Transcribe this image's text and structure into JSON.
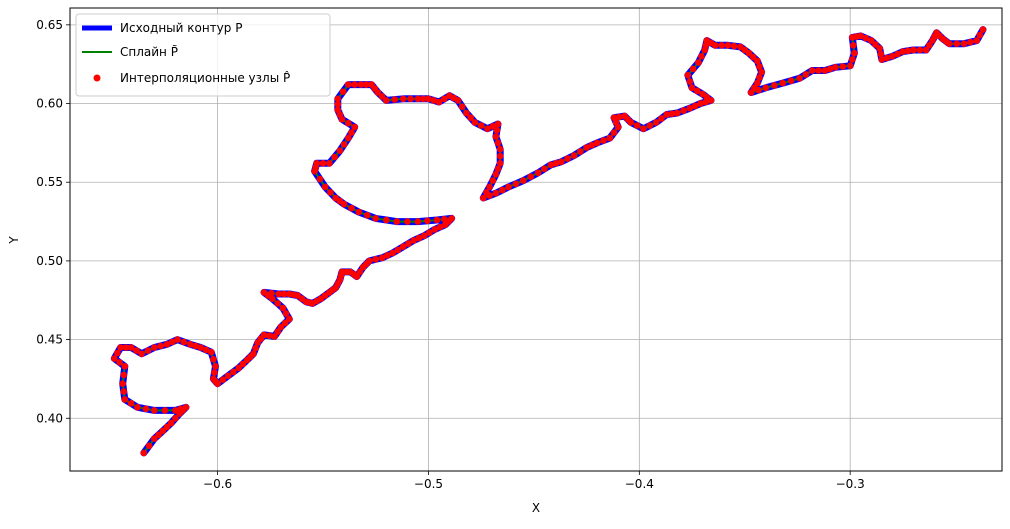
{
  "chart_data": {
    "type": "line",
    "xlabel": "X",
    "ylabel": "Y",
    "xlim": [
      -0.67,
      -0.228
    ],
    "ylim": [
      0.3665,
      0.6607
    ],
    "grid": true,
    "legend_position": "top-left",
    "xticks": [
      -0.6,
      -0.5,
      -0.4,
      -0.3
    ],
    "xtick_labels": [
      "−0.6",
      "−0.5",
      "−0.4",
      "−0.3"
    ],
    "yticks": [
      0.4,
      0.45,
      0.5,
      0.55,
      0.6,
      0.65
    ],
    "ytick_labels": [
      "0.40",
      "0.45",
      "0.50",
      "0.55",
      "0.60",
      "0.65"
    ],
    "series": [
      {
        "name": "Исходный контур P",
        "kind": "line",
        "color": "#0000ff"
      },
      {
        "name": "Сплайн P̃",
        "kind": "line",
        "color": "#008000"
      },
      {
        "name": "Интерполяционные узлы P̂",
        "kind": "scatter",
        "color": "#ff0000"
      }
    ],
    "contour": [
      [
        -0.635,
        0.378
      ],
      [
        -0.63,
        0.387
      ],
      [
        -0.626,
        0.392
      ],
      [
        -0.622,
        0.397
      ],
      [
        -0.618,
        0.403
      ],
      [
        -0.615,
        0.407
      ],
      [
        -0.62,
        0.405
      ],
      [
        -0.63,
        0.405
      ],
      [
        -0.638,
        0.407
      ],
      [
        -0.644,
        0.412
      ],
      [
        -0.645,
        0.422
      ],
      [
        -0.644,
        0.433
      ],
      [
        -0.649,
        0.438
      ],
      [
        -0.646,
        0.445
      ],
      [
        -0.641,
        0.445
      ],
      [
        -0.636,
        0.441
      ],
      [
        -0.63,
        0.445
      ],
      [
        -0.624,
        0.447
      ],
      [
        -0.619,
        0.45
      ],
      [
        -0.613,
        0.447
      ],
      [
        -0.608,
        0.445
      ],
      [
        -0.603,
        0.442
      ],
      [
        -0.601,
        0.433
      ],
      [
        -0.602,
        0.425
      ],
      [
        -0.6,
        0.422
      ],
      [
        -0.595,
        0.427
      ],
      [
        -0.59,
        0.432
      ],
      [
        -0.586,
        0.437
      ],
      [
        -0.583,
        0.441
      ],
      [
        -0.581,
        0.448
      ],
      [
        -0.578,
        0.453
      ],
      [
        -0.573,
        0.452
      ],
      [
        -0.57,
        0.458
      ],
      [
        -0.566,
        0.463
      ],
      [
        -0.569,
        0.47
      ],
      [
        -0.574,
        0.476
      ],
      [
        -0.578,
        0.48
      ],
      [
        -0.571,
        0.479
      ],
      [
        -0.566,
        0.479
      ],
      [
        -0.562,
        0.478
      ],
      [
        -0.558,
        0.474
      ],
      [
        -0.555,
        0.473
      ],
      [
        -0.551,
        0.476
      ],
      [
        -0.547,
        0.48
      ],
      [
        -0.544,
        0.483
      ],
      [
        -0.542,
        0.488
      ],
      [
        -0.541,
        0.493
      ],
      [
        -0.537,
        0.493
      ],
      [
        -0.534,
        0.49
      ],
      [
        -0.531,
        0.496
      ],
      [
        -0.528,
        0.5
      ],
      [
        -0.522,
        0.502
      ],
      [
        -0.517,
        0.505
      ],
      [
        -0.512,
        0.509
      ],
      [
        -0.507,
        0.513
      ],
      [
        -0.502,
        0.516
      ],
      [
        -0.497,
        0.52
      ],
      [
        -0.492,
        0.523
      ],
      [
        -0.489,
        0.527
      ],
      [
        -0.496,
        0.526
      ],
      [
        -0.505,
        0.525
      ],
      [
        -0.515,
        0.525
      ],
      [
        -0.525,
        0.527
      ],
      [
        -0.533,
        0.531
      ],
      [
        -0.54,
        0.536
      ],
      [
        -0.544,
        0.54
      ],
      [
        -0.549,
        0.547
      ],
      [
        -0.554,
        0.557
      ],
      [
        -0.553,
        0.562
      ],
      [
        -0.547,
        0.562
      ],
      [
        -0.542,
        0.57
      ],
      [
        -0.538,
        0.578
      ],
      [
        -0.535,
        0.585
      ],
      [
        -0.541,
        0.59
      ],
      [
        -0.543,
        0.596
      ],
      [
        -0.543,
        0.603
      ],
      [
        -0.538,
        0.612
      ],
      [
        -0.532,
        0.612
      ],
      [
        -0.527,
        0.612
      ],
      [
        -0.524,
        0.607
      ],
      [
        -0.52,
        0.602
      ],
      [
        -0.512,
        0.603
      ],
      [
        -0.505,
        0.603
      ],
      [
        -0.5,
        0.603
      ],
      [
        -0.495,
        0.601
      ],
      [
        -0.49,
        0.605
      ],
      [
        -0.486,
        0.602
      ],
      [
        -0.482,
        0.594
      ],
      [
        -0.478,
        0.588
      ],
      [
        -0.472,
        0.584
      ],
      [
        -0.467,
        0.587
      ],
      [
        -0.468,
        0.579
      ],
      [
        -0.466,
        0.571
      ],
      [
        -0.466,
        0.562
      ],
      [
        -0.468,
        0.555
      ],
      [
        -0.471,
        0.547
      ],
      [
        -0.474,
        0.54
      ],
      [
        -0.468,
        0.543
      ],
      [
        -0.462,
        0.547
      ],
      [
        -0.455,
        0.551
      ],
      [
        -0.448,
        0.556
      ],
      [
        -0.442,
        0.561
      ],
      [
        -0.437,
        0.563
      ],
      [
        -0.431,
        0.567
      ],
      [
        -0.425,
        0.572
      ],
      [
        -0.42,
        0.575
      ],
      [
        -0.414,
        0.578
      ],
      [
        -0.41,
        0.585
      ],
      [
        -0.412,
        0.591
      ],
      [
        -0.407,
        0.592
      ],
      [
        -0.404,
        0.588
      ],
      [
        -0.398,
        0.584
      ],
      [
        -0.392,
        0.588
      ],
      [
        -0.387,
        0.593
      ],
      [
        -0.382,
        0.594
      ],
      [
        -0.376,
        0.597
      ],
      [
        -0.371,
        0.6
      ],
      [
        -0.366,
        0.602
      ],
      [
        -0.37,
        0.606
      ],
      [
        -0.375,
        0.61
      ],
      [
        -0.377,
        0.618
      ],
      [
        -0.372,
        0.626
      ],
      [
        -0.369,
        0.634
      ],
      [
        -0.368,
        0.64
      ],
      [
        -0.364,
        0.637
      ],
      [
        -0.358,
        0.637
      ],
      [
        -0.352,
        0.636
      ],
      [
        -0.348,
        0.632
      ],
      [
        -0.344,
        0.627
      ],
      [
        -0.342,
        0.62
      ],
      [
        -0.344,
        0.613
      ],
      [
        -0.347,
        0.607
      ],
      [
        -0.34,
        0.61
      ],
      [
        -0.332,
        0.613
      ],
      [
        -0.324,
        0.616
      ],
      [
        -0.318,
        0.621
      ],
      [
        -0.312,
        0.621
      ],
      [
        -0.307,
        0.623
      ],
      [
        -0.3,
        0.624
      ],
      [
        -0.298,
        0.632
      ],
      [
        -0.299,
        0.642
      ],
      [
        -0.295,
        0.643
      ],
      [
        -0.29,
        0.64
      ],
      [
        -0.286,
        0.635
      ],
      [
        -0.285,
        0.628
      ],
      [
        -0.28,
        0.63
      ],
      [
        -0.275,
        0.633
      ],
      [
        -0.27,
        0.634
      ],
      [
        -0.264,
        0.634
      ],
      [
        -0.261,
        0.64
      ],
      [
        -0.259,
        0.645
      ],
      [
        -0.256,
        0.641
      ],
      [
        -0.253,
        0.638
      ],
      [
        -0.246,
        0.638
      ],
      [
        -0.24,
        0.64
      ],
      [
        -0.237,
        0.647
      ]
    ]
  }
}
